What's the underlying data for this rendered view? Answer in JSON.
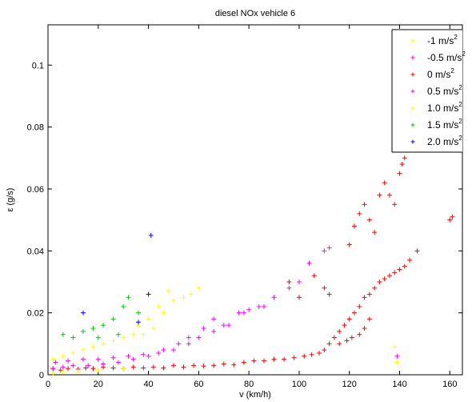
{
  "chart_data": {
    "type": "scatter",
    "title": "diesel NOx vehicle 6",
    "xlabel": "v (km/h)",
    "ylabel": "ε (g/s)",
    "xlim": [
      0,
      165
    ],
    "ylim": [
      0,
      0.113
    ],
    "xticks": [
      "0",
      "20",
      "40",
      "60",
      "80",
      "100",
      "120",
      "140",
      "160"
    ],
    "yticks": [
      "0",
      "0.02",
      "0.04",
      "0.06",
      "0.08",
      "0.1"
    ],
    "xtick_values": [
      0,
      20,
      40,
      60,
      80,
      100,
      120,
      140,
      160
    ],
    "ytick_values": [
      0,
      0.02,
      0.04,
      0.06,
      0.08,
      0.1
    ],
    "grid": false,
    "legend_position": "top-right",
    "series": [
      {
        "name": "-1 m/s",
        "unit_sup": "2",
        "color": "#ffff00",
        "marker": "cross"
      },
      {
        "name": "-0.5 m/s",
        "unit_sup": "2",
        "color": "#ff00ff",
        "marker": "cross"
      },
      {
        "name": "0 m/s",
        "unit_sup": "2",
        "color": "#ff0000",
        "marker": "cross"
      },
      {
        "name": "0.5 m/s",
        "unit_sup": "2",
        "color": "#ff00ff",
        "marker": "cross"
      },
      {
        "name": "1.0 m/s",
        "unit_sup": "2",
        "color": "#ffff00",
        "marker": "cross"
      },
      {
        "name": "1.5 m/s",
        "unit_sup": "2",
        "color": "#00cc00",
        "marker": "cross"
      },
      {
        "name": "2.0 m/s",
        "unit_sup": "2",
        "color": "#0000ff",
        "marker": "cross"
      }
    ],
    "points": [
      {
        "s": 2,
        "x": 2,
        "y": 0.002
      },
      {
        "s": 2,
        "x": 5,
        "y": 0.0015
      },
      {
        "s": 2,
        "x": 8,
        "y": 0.002
      },
      {
        "s": 2,
        "x": 12,
        "y": 0.0018
      },
      {
        "s": 2,
        "x": 15,
        "y": 0.0022
      },
      {
        "s": 2,
        "x": 18,
        "y": 0.002
      },
      {
        "s": 2,
        "x": 22,
        "y": 0.0025
      },
      {
        "s": 2,
        "x": 26,
        "y": 0.0022
      },
      {
        "s": 2,
        "x": 30,
        "y": 0.002
      },
      {
        "s": 2,
        "x": 34,
        "y": 0.0025
      },
      {
        "s": 2,
        "x": 38,
        "y": 0.0022
      },
      {
        "s": 2,
        "x": 42,
        "y": 0.0025
      },
      {
        "s": 2,
        "x": 46,
        "y": 0.0022
      },
      {
        "s": 2,
        "x": 50,
        "y": 0.003
      },
      {
        "s": 2,
        "x": 54,
        "y": 0.0025
      },
      {
        "s": 2,
        "x": 58,
        "y": 0.003
      },
      {
        "s": 2,
        "x": 62,
        "y": 0.0028
      },
      {
        "s": 2,
        "x": 66,
        "y": 0.003
      },
      {
        "s": 2,
        "x": 70,
        "y": 0.0035
      },
      {
        "s": 2,
        "x": 74,
        "y": 0.0032
      },
      {
        "s": 2,
        "x": 78,
        "y": 0.004
      },
      {
        "s": 2,
        "x": 82,
        "y": 0.0045
      },
      {
        "s": 2,
        "x": 86,
        "y": 0.0045
      },
      {
        "s": 2,
        "x": 90,
        "y": 0.005
      },
      {
        "s": 2,
        "x": 94,
        "y": 0.005
      },
      {
        "s": 2,
        "x": 98,
        "y": 0.0055
      },
      {
        "s": 2,
        "x": 102,
        "y": 0.006
      },
      {
        "s": 2,
        "x": 105,
        "y": 0.0065
      },
      {
        "s": 2,
        "x": 108,
        "y": 0.007
      },
      {
        "s": 2,
        "x": 110,
        "y": 0.008
      },
      {
        "s": 2,
        "x": 112,
        "y": 0.01
      },
      {
        "s": 2,
        "x": 114,
        "y": 0.012
      },
      {
        "s": 2,
        "x": 116,
        "y": 0.014
      },
      {
        "s": 2,
        "x": 118,
        "y": 0.016
      },
      {
        "s": 2,
        "x": 120,
        "y": 0.018
      },
      {
        "s": 2,
        "x": 122,
        "y": 0.02
      },
      {
        "s": 2,
        "x": 124,
        "y": 0.022
      },
      {
        "s": 2,
        "x": 126,
        "y": 0.025
      },
      {
        "s": 2,
        "x": 128,
        "y": 0.026
      },
      {
        "s": 2,
        "x": 130,
        "y": 0.028
      },
      {
        "s": 2,
        "x": 132,
        "y": 0.03
      },
      {
        "s": 2,
        "x": 134,
        "y": 0.031
      },
      {
        "s": 2,
        "x": 136,
        "y": 0.032
      },
      {
        "s": 2,
        "x": 138,
        "y": 0.033
      },
      {
        "s": 2,
        "x": 140,
        "y": 0.034
      },
      {
        "s": 2,
        "x": 142,
        "y": 0.035
      },
      {
        "s": 2,
        "x": 144,
        "y": 0.037
      },
      {
        "s": 2,
        "x": 147,
        "y": 0.04
      },
      {
        "s": 2,
        "x": 160,
        "y": 0.05
      },
      {
        "s": 2,
        "x": 161,
        "y": 0.051
      },
      {
        "s": 2,
        "x": 116,
        "y": 0.01
      },
      {
        "s": 2,
        "x": 119,
        "y": 0.011
      },
      {
        "s": 2,
        "x": 121,
        "y": 0.012
      },
      {
        "s": 2,
        "x": 124,
        "y": 0.013
      },
      {
        "s": 2,
        "x": 126,
        "y": 0.015
      },
      {
        "s": 2,
        "x": 128,
        "y": 0.018
      },
      {
        "s": 2,
        "x": 120,
        "y": 0.042
      },
      {
        "s": 2,
        "x": 122,
        "y": 0.048
      },
      {
        "s": 2,
        "x": 124,
        "y": 0.052
      },
      {
        "s": 2,
        "x": 126,
        "y": 0.055
      },
      {
        "s": 2,
        "x": 128,
        "y": 0.05
      },
      {
        "s": 2,
        "x": 130,
        "y": 0.046
      },
      {
        "s": 2,
        "x": 132,
        "y": 0.058
      },
      {
        "s": 2,
        "x": 134,
        "y": 0.062
      },
      {
        "s": 2,
        "x": 136,
        "y": 0.058
      },
      {
        "s": 2,
        "x": 138,
        "y": 0.055
      },
      {
        "s": 2,
        "x": 140,
        "y": 0.065
      },
      {
        "s": 2,
        "x": 142,
        "y": 0.07
      },
      {
        "s": 2,
        "x": 141,
        "y": 0.068
      },
      {
        "s": 2,
        "x": 106,
        "y": 0.032
      },
      {
        "s": 2,
        "x": 110,
        "y": 0.028
      },
      {
        "s": 2,
        "x": 112,
        "y": 0.026
      },
      {
        "s": 2,
        "x": 96,
        "y": 0.03
      },
      {
        "s": 2,
        "x": 100,
        "y": 0.025
      },
      {
        "s": 1,
        "x": 3,
        "y": 0.004
      },
      {
        "s": 1,
        "x": 8,
        "y": 0.0045
      },
      {
        "s": 1,
        "x": 14,
        "y": 0.005
      },
      {
        "s": 1,
        "x": 20,
        "y": 0.005
      },
      {
        "s": 1,
        "x": 26,
        "y": 0.0055
      },
      {
        "s": 1,
        "x": 32,
        "y": 0.006
      },
      {
        "s": 1,
        "x": 38,
        "y": 0.0065
      },
      {
        "s": 1,
        "x": 44,
        "y": 0.007
      },
      {
        "s": 1,
        "x": 50,
        "y": 0.008
      },
      {
        "s": 1,
        "x": 56,
        "y": 0.01
      },
      {
        "s": 1,
        "x": 60,
        "y": 0.012
      },
      {
        "s": 1,
        "x": 66,
        "y": 0.014
      },
      {
        "s": 1,
        "x": 72,
        "y": 0.016
      },
      {
        "s": 1,
        "x": 78,
        "y": 0.02
      },
      {
        "s": 1,
        "x": 84,
        "y": 0.022
      },
      {
        "s": 1,
        "x": 90,
        "y": 0.025
      },
      {
        "s": 1,
        "x": 96,
        "y": 0.028
      },
      {
        "s": 1,
        "x": 100,
        "y": 0.03
      },
      {
        "s": 1,
        "x": 104,
        "y": 0.036
      },
      {
        "s": 1,
        "x": 110,
        "y": 0.04
      },
      {
        "s": 1,
        "x": 112,
        "y": 0.041
      },
      {
        "s": 1,
        "x": 139,
        "y": 0.006
      },
      {
        "s": 3,
        "x": 2,
        "y": 0.002
      },
      {
        "s": 3,
        "x": 6,
        "y": 0.0025
      },
      {
        "s": 3,
        "x": 10,
        "y": 0.003
      },
      {
        "s": 3,
        "x": 16,
        "y": 0.003
      },
      {
        "s": 3,
        "x": 22,
        "y": 0.0035
      },
      {
        "s": 3,
        "x": 28,
        "y": 0.004
      },
      {
        "s": 3,
        "x": 34,
        "y": 0.005
      },
      {
        "s": 3,
        "x": 40,
        "y": 0.006
      },
      {
        "s": 3,
        "x": 46,
        "y": 0.008
      },
      {
        "s": 3,
        "x": 52,
        "y": 0.01
      },
      {
        "s": 3,
        "x": 56,
        "y": 0.012
      },
      {
        "s": 3,
        "x": 62,
        "y": 0.015
      },
      {
        "s": 3,
        "x": 66,
        "y": 0.018
      },
      {
        "s": 3,
        "x": 70,
        "y": 0.016
      },
      {
        "s": 3,
        "x": 76,
        "y": 0.02
      },
      {
        "s": 3,
        "x": 80,
        "y": 0.021
      },
      {
        "s": 3,
        "x": 86,
        "y": 0.022
      },
      {
        "s": 0,
        "x": 2,
        "y": 0.0005
      },
      {
        "s": 0,
        "x": 6,
        "y": 0.001
      },
      {
        "s": 0,
        "x": 12,
        "y": 0.001
      },
      {
        "s": 0,
        "x": 20,
        "y": 0.0015
      },
      {
        "s": 0,
        "x": 30,
        "y": 0.002
      },
      {
        "s": 0,
        "x": 138,
        "y": 0.009
      },
      {
        "s": 0,
        "x": 139,
        "y": 0.004
      },
      {
        "s": 4,
        "x": 2,
        "y": 0.005
      },
      {
        "s": 4,
        "x": 6,
        "y": 0.006
      },
      {
        "s": 4,
        "x": 10,
        "y": 0.007
      },
      {
        "s": 4,
        "x": 14,
        "y": 0.008
      },
      {
        "s": 4,
        "x": 18,
        "y": 0.009
      },
      {
        "s": 4,
        "x": 22,
        "y": 0.01
      },
      {
        "s": 4,
        "x": 26,
        "y": 0.011
      },
      {
        "s": 4,
        "x": 30,
        "y": 0.012
      },
      {
        "s": 4,
        "x": 34,
        "y": 0.013
      },
      {
        "s": 4,
        "x": 38,
        "y": 0.013
      },
      {
        "s": 4,
        "x": 42,
        "y": 0.015
      },
      {
        "s": 4,
        "x": 46,
        "y": 0.02
      },
      {
        "s": 4,
        "x": 50,
        "y": 0.024
      },
      {
        "s": 4,
        "x": 54,
        "y": 0.025
      },
      {
        "s": 4,
        "x": 57,
        "y": 0.026
      },
      {
        "s": 4,
        "x": 60,
        "y": 0.028
      },
      {
        "s": 4,
        "x": 48,
        "y": 0.027
      },
      {
        "s": 4,
        "x": 40,
        "y": 0.018
      },
      {
        "s": 4,
        "x": 36,
        "y": 0.016
      },
      {
        "s": 4,
        "x": 44,
        "y": 0.022
      },
      {
        "s": 5,
        "x": 6,
        "y": 0.013
      },
      {
        "s": 5,
        "x": 10,
        "y": 0.012
      },
      {
        "s": 5,
        "x": 14,
        "y": 0.014
      },
      {
        "s": 5,
        "x": 18,
        "y": 0.015
      },
      {
        "s": 5,
        "x": 22,
        "y": 0.016
      },
      {
        "s": 5,
        "x": 26,
        "y": 0.018
      },
      {
        "s": 5,
        "x": 30,
        "y": 0.022
      },
      {
        "s": 5,
        "x": 32,
        "y": 0.025
      },
      {
        "s": 5,
        "x": 36,
        "y": 0.02
      },
      {
        "s": 5,
        "x": 20,
        "y": 0.012
      },
      {
        "s": 5,
        "x": 28,
        "y": 0.013
      },
      {
        "s": 6,
        "x": 14,
        "y": 0.02
      },
      {
        "s": 6,
        "x": 36,
        "y": 0.017
      },
      {
        "s": 6,
        "x": 40,
        "y": 0.026
      },
      {
        "s": 6,
        "x": 41,
        "y": 0.045
      }
    ]
  }
}
